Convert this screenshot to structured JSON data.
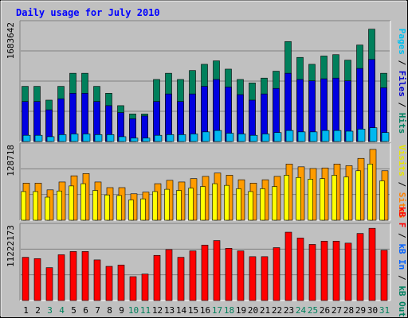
{
  "chart_data": {
    "type": "bar",
    "title": "Daily usage for July 2010",
    "categories": [
      "1",
      "2",
      "3",
      "4",
      "5",
      "6",
      "7",
      "8",
      "9",
      "10",
      "11",
      "12",
      "13",
      "14",
      "15",
      "16",
      "17",
      "18",
      "19",
      "20",
      "21",
      "22",
      "23",
      "24",
      "25",
      "26",
      "27",
      "28",
      "29",
      "30",
      "31"
    ],
    "weekend_days": [
      3,
      4,
      10,
      11,
      17,
      18,
      24,
      25,
      31
    ],
    "panels": [
      {
        "id": "hits",
        "ymax_label": "1683642",
        "ylim": [
          0,
          1683642
        ],
        "legend": [
          {
            "text": "Pages",
            "color": "#00c0f0"
          },
          {
            "text": "Files",
            "color": "#0000d0"
          },
          {
            "text": "Hits",
            "color": "#008060"
          }
        ],
        "separator": " / ",
        "series": [
          {
            "name": "Hits",
            "color": "#00805c",
            "values": [
              800000,
              800000,
              600000,
              800000,
              990000,
              990000,
              800000,
              700000,
              520000,
              400000,
              400000,
              900000,
              990000,
              900000,
              1030000,
              1120000,
              1170000,
              1050000,
              900000,
              850000,
              920000,
              1020000,
              1450000,
              1220000,
              1120000,
              1240000,
              1260000,
              1180000,
              1400000,
              1630000,
              990000
            ]
          },
          {
            "name": "Files",
            "color": "#0000e0",
            "values": [
              580000,
              580000,
              460000,
              620000,
              700000,
              700000,
              580000,
              520000,
              420000,
              330000,
              370000,
              580000,
              690000,
              580000,
              690000,
              800000,
              900000,
              790000,
              680000,
              600000,
              690000,
              770000,
              990000,
              900000,
              880000,
              910000,
              920000,
              880000,
              1060000,
              1190000,
              780000
            ]
          },
          {
            "name": "Pages",
            "color": "#00b8f0",
            "values": [
              90000,
              90000,
              70000,
              100000,
              110000,
              110000,
              100000,
              100000,
              70000,
              50000,
              50000,
              90000,
              100000,
              100000,
              110000,
              140000,
              160000,
              120000,
              110000,
              90000,
              110000,
              130000,
              160000,
              140000,
              140000,
              160000,
              160000,
              150000,
              180000,
              200000,
              130000
            ]
          }
        ]
      },
      {
        "id": "visits",
        "ymax_label": "128718",
        "ylim": [
          0,
          128718
        ],
        "legend": [
          {
            "text": "Visits",
            "color": "#e8e800"
          },
          {
            "text": "Sites",
            "color": "#ff8000"
          }
        ],
        "separator": " / ",
        "series": [
          {
            "name": "Sites",
            "color": "#ff9c00",
            "values": [
              66000,
              66000,
              54000,
              68000,
              79000,
              83000,
              68000,
              58000,
              58000,
              47000,
              50000,
              65000,
              71000,
              68000,
              74000,
              78000,
              84000,
              80000,
              72000,
              66000,
              72000,
              78000,
              100000,
              95000,
              92000,
              93000,
              100000,
              97000,
              110000,
              126000,
              88000
            ]
          },
          {
            "name": "Visits",
            "color": "#ffff00",
            "values": [
              51000,
              51000,
              41000,
              52000,
              61000,
              65000,
              53000,
              45000,
              44000,
              36000,
              38000,
              51000,
              55000,
              53000,
              57000,
              60000,
              65000,
              62000,
              56000,
              51000,
              56000,
              60000,
              80000,
              76000,
              73000,
              74000,
              80000,
              77000,
              88000,
              100000,
              70000
            ]
          }
        ]
      },
      {
        "id": "kbytes",
        "ymax_label": "11222173",
        "ylim": [
          0,
          11222173
        ],
        "legend": [
          {
            "text": "kB F",
            "color": "#ff0000"
          },
          {
            "text": "kB In",
            "color": "#0060ff"
          },
          {
            "text": "kB Out",
            "color": "#008060"
          }
        ],
        "separator": " / ",
        "series": [
          {
            "name": "kB F",
            "color": "#ff0000",
            "values": [
              6700000,
              6500000,
              5100000,
              7100000,
              7600000,
              7600000,
              6300000,
              5300000,
              5500000,
              3700000,
              4100000,
              7000000,
              7900000,
              6700000,
              7700000,
              8600000,
              9300000,
              8100000,
              7700000,
              6800000,
              6800000,
              8200000,
              10600000,
              9700000,
              8700000,
              9200000,
              9200000,
              8900000,
              10400000,
              11200000,
              7800000
            ]
          }
        ]
      }
    ]
  }
}
